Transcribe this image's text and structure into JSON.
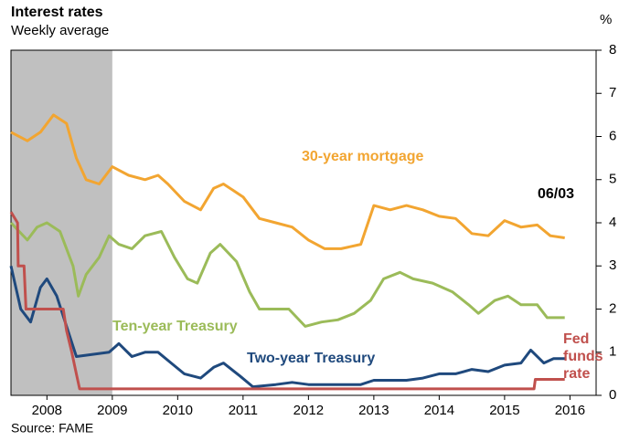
{
  "chart_data": {
    "type": "line",
    "title": "Interest rates",
    "subtitle": "Weekly average",
    "y_unit": "%",
    "source": "Source: FAME",
    "date_label": "06/03",
    "shaded_span": [
      2007.95,
      2009.5
    ],
    "shade_color": "#c0c0c0",
    "xlim": [
      2007.95,
      2016.9
    ],
    "ylim": [
      0,
      8
    ],
    "xticks": [
      {
        "value": 2008.5,
        "label": "2008"
      },
      {
        "value": 2009.5,
        "label": "2009"
      },
      {
        "value": 2010.5,
        "label": "2010"
      },
      {
        "value": 2011.5,
        "label": "2011"
      },
      {
        "value": 2012.5,
        "label": "2012"
      },
      {
        "value": 2013.5,
        "label": "2013"
      },
      {
        "value": 2014.5,
        "label": "2014"
      },
      {
        "value": 2015.5,
        "label": "2015"
      },
      {
        "value": 2016.5,
        "label": "2016"
      }
    ],
    "yticks": [
      0,
      1,
      2,
      3,
      4,
      5,
      6,
      7,
      8
    ],
    "series": [
      {
        "name": "30-year mortgage",
        "color": "#f2a531",
        "x": [
          2007.95,
          2008.2,
          2008.4,
          2008.6,
          2008.8,
          2008.95,
          2009.1,
          2009.3,
          2009.5,
          2009.75,
          2010.0,
          2010.2,
          2010.35,
          2010.6,
          2010.85,
          2011.05,
          2011.2,
          2011.5,
          2011.75,
          2012.0,
          2012.25,
          2012.5,
          2012.75,
          2013.0,
          2013.3,
          2013.5,
          2013.75,
          2014.0,
          2014.25,
          2014.5,
          2014.75,
          2015.0,
          2015.25,
          2015.5,
          2015.75,
          2016.0,
          2016.2,
          2016.42
        ],
        "values": [
          6.1,
          5.9,
          6.1,
          6.5,
          6.3,
          5.5,
          5.0,
          4.9,
          5.3,
          5.1,
          5.0,
          5.1,
          4.9,
          4.5,
          4.3,
          4.8,
          4.9,
          4.6,
          4.1,
          4.0,
          3.9,
          3.6,
          3.4,
          3.4,
          3.5,
          4.4,
          4.3,
          4.4,
          4.3,
          4.15,
          4.1,
          3.75,
          3.7,
          4.05,
          3.9,
          3.95,
          3.7,
          3.65
        ]
      },
      {
        "name": "Ten-year Treasury",
        "color": "#9bbb59",
        "x": [
          2007.95,
          2008.2,
          2008.35,
          2008.5,
          2008.7,
          2008.9,
          2008.98,
          2009.1,
          2009.3,
          2009.45,
          2009.6,
          2009.8,
          2010.0,
          2010.25,
          2010.45,
          2010.65,
          2010.8,
          2011.0,
          2011.15,
          2011.4,
          2011.6,
          2011.75,
          2012.0,
          2012.2,
          2012.45,
          2012.7,
          2012.95,
          2013.2,
          2013.45,
          2013.65,
          2013.9,
          2014.1,
          2014.4,
          2014.7,
          2014.95,
          2015.1,
          2015.35,
          2015.55,
          2015.75,
          2016.0,
          2016.15,
          2016.42
        ],
        "values": [
          4.0,
          3.6,
          3.9,
          4.0,
          3.8,
          3.0,
          2.3,
          2.8,
          3.2,
          3.7,
          3.5,
          3.4,
          3.7,
          3.8,
          3.2,
          2.7,
          2.6,
          3.3,
          3.5,
          3.1,
          2.4,
          2.0,
          2.0,
          2.0,
          1.6,
          1.7,
          1.75,
          1.9,
          2.2,
          2.7,
          2.85,
          2.7,
          2.6,
          2.4,
          2.1,
          1.9,
          2.2,
          2.3,
          2.1,
          2.1,
          1.8,
          1.8
        ]
      },
      {
        "name": "Two-year Treasury",
        "color": "#1f497d",
        "x": [
          2007.95,
          2008.1,
          2008.25,
          2008.4,
          2008.5,
          2008.65,
          2008.8,
          2008.95,
          2009.2,
          2009.45,
          2009.6,
          2009.8,
          2010.0,
          2010.2,
          2010.4,
          2010.6,
          2010.85,
          2011.05,
          2011.2,
          2011.45,
          2011.65,
          2012.0,
          2012.25,
          2012.5,
          2012.75,
          2013.0,
          2013.3,
          2013.5,
          2013.75,
          2014.0,
          2014.25,
          2014.5,
          2014.75,
          2015.0,
          2015.25,
          2015.5,
          2015.75,
          2015.9,
          2016.1,
          2016.25,
          2016.42
        ],
        "values": [
          3.0,
          2.0,
          1.7,
          2.5,
          2.7,
          2.3,
          1.6,
          0.9,
          0.95,
          1.0,
          1.2,
          0.9,
          1.0,
          1.0,
          0.75,
          0.5,
          0.4,
          0.65,
          0.75,
          0.45,
          0.2,
          0.25,
          0.3,
          0.25,
          0.25,
          0.25,
          0.25,
          0.35,
          0.35,
          0.35,
          0.4,
          0.5,
          0.5,
          0.6,
          0.55,
          0.7,
          0.75,
          1.05,
          0.75,
          0.85,
          0.85
        ]
      },
      {
        "name": "Fed funds rate",
        "color": "#c0504d",
        "x": [
          2007.95,
          2008.05,
          2008.06,
          2008.15,
          2008.18,
          2008.75,
          2008.8,
          2008.88,
          2008.95,
          2009.0,
          2015.95,
          2015.97,
          2016.42
        ],
        "values": [
          4.25,
          4.0,
          3.0,
          3.0,
          2.0,
          2.0,
          1.5,
          1.0,
          0.5,
          0.15,
          0.15,
          0.37,
          0.37
        ]
      }
    ]
  }
}
